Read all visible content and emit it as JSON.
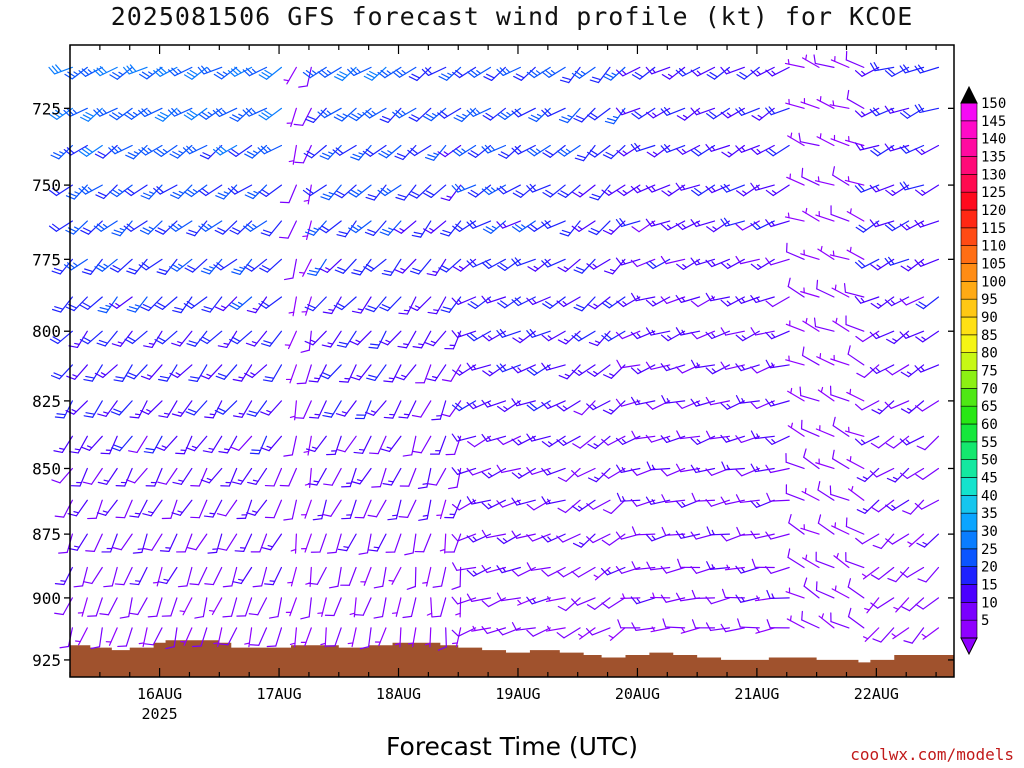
{
  "chart_data": {
    "type": "wind-barb-profile",
    "title": "2025081506 GFS forecast wind profile (kt) for KCOE",
    "xlabel": "Forecast Time (UTC)",
    "ylabel": "",
    "credit": "coolwx.com/models",
    "x_ticks": [
      {
        "label": "16AUG",
        "sub": "2025",
        "day": 1.0
      },
      {
        "label": "17AUG",
        "sub": "",
        "day": 2.0
      },
      {
        "label": "18AUG",
        "sub": "",
        "day": 3.0
      },
      {
        "label": "19AUG",
        "sub": "",
        "day": 4.0
      },
      {
        "label": "20AUG",
        "sub": "",
        "day": 5.0
      },
      {
        "label": "21AUG",
        "sub": "",
        "day": 6.0
      },
      {
        "label": "22AUG",
        "sub": "",
        "day": 7.0
      }
    ],
    "x_range_days": [
      0.25,
      7.65
    ],
    "time_step_hours": 3,
    "y_axis": {
      "scale": "log",
      "range_hPa": [
        705,
        932
      ],
      "tick_labels": [
        725,
        750,
        775,
        800,
        825,
        850,
        875,
        900,
        925
      ]
    },
    "levels_hPa": [
      712,
      725,
      737,
      750,
      762,
      775,
      788,
      800,
      812,
      825,
      838,
      850,
      862,
      875,
      888,
      900,
      912,
      925
    ],
    "colorbar": {
      "labels": [
        5,
        10,
        15,
        20,
        25,
        30,
        35,
        40,
        45,
        50,
        55,
        60,
        65,
        70,
        75,
        80,
        85,
        90,
        95,
        100,
        105,
        110,
        115,
        120,
        125,
        130,
        135,
        140,
        145,
        150
      ],
      "colors": [
        "#8f00ff",
        "#7a00ff",
        "#4b00ff",
        "#1e22ff",
        "#0a55ff",
        "#0a7dff",
        "#0aa5ff",
        "#16c6ee",
        "#14e3cd",
        "#14e8a0",
        "#14e86e",
        "#16e83c",
        "#28e814",
        "#4fe814",
        "#8cf014",
        "#c7f814",
        "#f5f514",
        "#ffe014",
        "#ffc814",
        "#ffaa14",
        "#ff8c14",
        "#ff6e14",
        "#ff4b14",
        "#ff2814",
        "#ff0a1e",
        "#ff0a50",
        "#ff0a78",
        "#ff0aa0",
        "#ff0ac8",
        "#f50af5"
      ]
    },
    "ground_pressure_hPa": [
      [
        0.25,
        919
      ],
      [
        0.42,
        920
      ],
      [
        0.6,
        921
      ],
      [
        0.75,
        920
      ],
      [
        0.95,
        918
      ],
      [
        1.05,
        917
      ],
      [
        1.15,
        917
      ],
      [
        1.5,
        918
      ],
      [
        1.6,
        920
      ],
      [
        2.1,
        919
      ],
      [
        2.3,
        919
      ],
      [
        2.5,
        920
      ],
      [
        2.75,
        919
      ],
      [
        2.95,
        918
      ],
      [
        3.1,
        918
      ],
      [
        3.35,
        919
      ],
      [
        3.5,
        920
      ],
      [
        3.7,
        921
      ],
      [
        3.9,
        922
      ],
      [
        4.1,
        921
      ],
      [
        4.35,
        922
      ],
      [
        4.55,
        923
      ],
      [
        4.7,
        924
      ],
      [
        4.9,
        923
      ],
      [
        5.1,
        922
      ],
      [
        5.3,
        923
      ],
      [
        5.5,
        924
      ],
      [
        5.7,
        925
      ],
      [
        5.9,
        925
      ],
      [
        6.1,
        924
      ],
      [
        6.3,
        924
      ],
      [
        6.5,
        925
      ],
      [
        6.7,
        925
      ],
      [
        6.85,
        926
      ],
      [
        6.95,
        925
      ],
      [
        7.15,
        923
      ],
      [
        7.65,
        923
      ]
    ],
    "wind_regimes": [
      {
        "days": [
          0.25,
          2.1
        ],
        "upper_dir": 240,
        "lower_dir": 195,
        "upper_speed": 27,
        "lower_speed": 7
      },
      {
        "days": [
          2.1,
          2.3
        ],
        "upper_dir": 200,
        "lower_dir": 190,
        "upper_speed": 7,
        "lower_speed": 5
      },
      {
        "days": [
          2.3,
          3.1
        ],
        "upper_dir": 235,
        "lower_dir": 190,
        "upper_speed": 26,
        "lower_speed": 6
      },
      {
        "days": [
          3.1,
          3.6
        ],
        "upper_dir": 235,
        "lower_dir": 180,
        "upper_speed": 22,
        "lower_speed": 5
      },
      {
        "days": [
          3.6,
          4.5
        ],
        "upper_dir": 235,
        "lower_dir": 255,
        "upper_speed": 24,
        "lower_speed": 8
      },
      {
        "days": [
          4.5,
          5.0
        ],
        "upper_dir": 225,
        "lower_dir": 240,
        "upper_speed": 22,
        "lower_speed": 7
      },
      {
        "days": [
          5.0,
          6.3
        ],
        "upper_dir": 240,
        "lower_dir": 265,
        "upper_speed": 17,
        "lower_speed": 9
      },
      {
        "days": [
          6.3,
          6.95
        ],
        "upper_dir": 290,
        "lower_dir": 300,
        "upper_speed": 6,
        "lower_speed": 8
      },
      {
        "days": [
          6.95,
          7.65
        ],
        "upper_dir": 250,
        "lower_dir": 225,
        "upper_speed": 19,
        "lower_speed": 7
      }
    ]
  }
}
